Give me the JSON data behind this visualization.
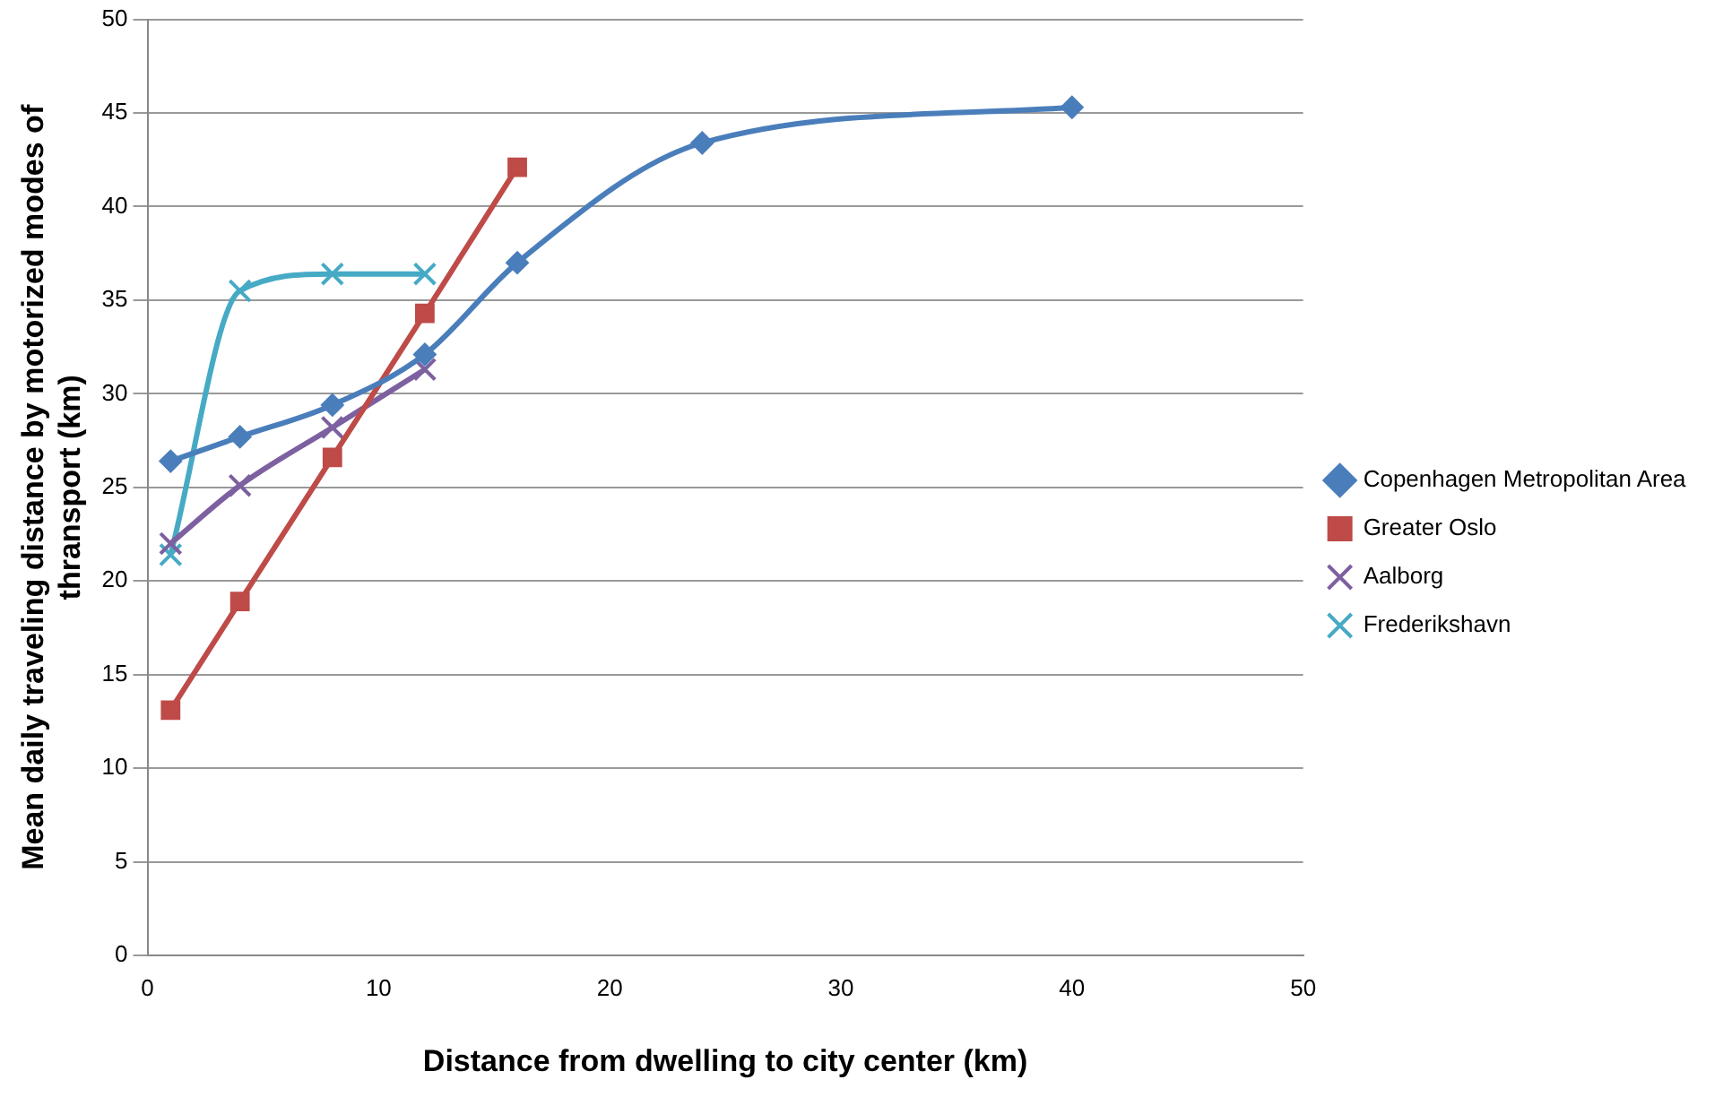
{
  "chart_data": {
    "type": "line",
    "xlabel": "Distance from dwelling to city center (km)",
    "ylabel": "Mean daily traveling distance by motorized modes of thransport (km)",
    "xlim": [
      0,
      50
    ],
    "xticks": [
      0,
      10,
      20,
      30,
      40,
      50
    ],
    "ylim": [
      0,
      50
    ],
    "yticks": [
      0,
      5,
      10,
      15,
      20,
      25,
      30,
      35,
      40,
      45,
      50
    ],
    "grid": "y",
    "legend": "right",
    "series": [
      {
        "name": "Copenhagen Metropolitan Area",
        "color": "#4a7ebb",
        "marker": "diamond",
        "x": [
          1,
          4,
          8,
          12,
          16,
          24,
          40
        ],
        "values": [
          26.4,
          27.7,
          29.4,
          32.1,
          37.0,
          43.4,
          45.3
        ]
      },
      {
        "name": "Greater Oslo",
        "color": "#be4b48",
        "marker": "square",
        "x": [
          1,
          4,
          8,
          12,
          16
        ],
        "values": [
          13.1,
          18.9,
          26.6,
          34.3,
          42.1
        ]
      },
      {
        "name": "Aalborg",
        "color": "#7d60a0",
        "marker": "cross",
        "x": [
          1,
          4,
          8,
          12
        ],
        "values": [
          22.0,
          25.1,
          28.2,
          31.3
        ]
      },
      {
        "name": "Frederikshavn",
        "color": "#46aac5",
        "marker": "cross",
        "x": [
          1,
          4,
          8,
          12
        ],
        "values": [
          21.4,
          35.5,
          36.4,
          36.4
        ]
      }
    ]
  }
}
